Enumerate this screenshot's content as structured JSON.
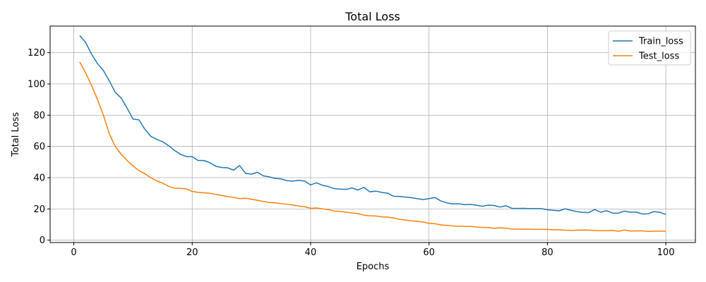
{
  "chart_data": {
    "type": "line",
    "title": "Total Loss",
    "xlabel": "Epochs",
    "ylabel": "Total Loss",
    "xlim": [
      -4,
      105
    ],
    "ylim": [
      -1.5,
      137
    ],
    "xticks": [
      0,
      20,
      40,
      60,
      80,
      100
    ],
    "yticks": [
      0,
      20,
      40,
      60,
      80,
      100,
      120
    ],
    "grid": true,
    "legend_position": "top-right",
    "x": [
      1,
      2,
      3,
      4,
      5,
      6,
      7,
      8,
      9,
      10,
      11,
      12,
      13,
      14,
      15,
      16,
      17,
      18,
      19,
      20,
      21,
      22,
      23,
      24,
      25,
      26,
      27,
      28,
      29,
      30,
      31,
      32,
      33,
      34,
      35,
      36,
      37,
      38,
      39,
      40,
      41,
      42,
      43,
      44,
      45,
      46,
      47,
      48,
      49,
      50,
      51,
      52,
      53,
      54,
      55,
      56,
      57,
      58,
      59,
      60,
      61,
      62,
      63,
      64,
      65,
      66,
      67,
      68,
      69,
      70,
      71,
      72,
      73,
      74,
      75,
      76,
      77,
      78,
      79,
      80,
      81,
      82,
      83,
      84,
      85,
      86,
      87,
      88,
      89,
      90,
      91,
      92,
      93,
      94,
      95,
      96,
      97,
      98,
      99,
      100
    ],
    "series": [
      {
        "name": "Train_loss",
        "color": "#1f77b4",
        "values": [
          131,
          126.5,
          119,
          113,
          108.5,
          102,
          94.5,
          91,
          84.5,
          77.5,
          77,
          71,
          66.5,
          64.5,
          63,
          60.5,
          57.5,
          55,
          53.5,
          53.5,
          51,
          51,
          49.5,
          47.3,
          46.5,
          46.3,
          44.8,
          47.8,
          42.8,
          42.2,
          43.5,
          41.2,
          40.5,
          39.5,
          39.2,
          38.1,
          37.8,
          38.3,
          37.8,
          35.4,
          36.7,
          35.1,
          34.3,
          33,
          32.7,
          32.5,
          33.4,
          32.1,
          33.8,
          30.9,
          31.4,
          30.6,
          30.1,
          28.1,
          28,
          27.6,
          27.2,
          26.6,
          26,
          26.6,
          27.3,
          25.1,
          23.9,
          23.2,
          23.3,
          22.7,
          22.9,
          22.4,
          21.7,
          22.4,
          22.2,
          21.2,
          22,
          20.4,
          20.3,
          20.4,
          20.2,
          20.2,
          20.2,
          19.5,
          19.1,
          18.8,
          20.1,
          19.1,
          18.3,
          17.8,
          17.7,
          19.6,
          17.9,
          18.9,
          17.3,
          17.3,
          18.6,
          17.9,
          17.9,
          16.8,
          16.9,
          18.3,
          17.8,
          16.5
        ]
      },
      {
        "name": "Test_loss",
        "color": "#ff7f0e",
        "values": [
          114,
          107,
          99,
          90,
          80,
          68,
          60,
          55,
          51,
          47.5,
          44.5,
          42.5,
          40,
          38,
          36.5,
          34.5,
          33.2,
          33.2,
          32.8,
          31.2,
          30.6,
          30.3,
          30,
          29.3,
          28.6,
          27.9,
          27.4,
          26.6,
          26.9,
          26.2,
          25.5,
          24.8,
          24.1,
          23.9,
          23.4,
          23,
          22.6,
          21.8,
          21.4,
          20.4,
          20.6,
          20.1,
          19.6,
          18.6,
          18.4,
          17.9,
          17.4,
          17,
          16,
          15.6,
          15.5,
          14.9,
          14.8,
          14.2,
          13.4,
          12.9,
          12.4,
          12.1,
          11.6,
          10.8,
          10.5,
          9.8,
          9.5,
          9.1,
          8.9,
          8.9,
          8.9,
          8.4,
          8.2,
          8.1,
          7.6,
          7.9,
          7.7,
          7.1,
          7.1,
          7,
          7,
          6.9,
          6.9,
          6.9,
          6.6,
          6.6,
          6.4,
          6.3,
          6.4,
          6.5,
          6.4,
          6.2,
          6.1,
          6.1,
          6.2,
          5.7,
          6.5,
          5.9,
          5.9,
          6,
          5.6,
          5.8,
          5.8,
          5.7
        ]
      }
    ]
  }
}
